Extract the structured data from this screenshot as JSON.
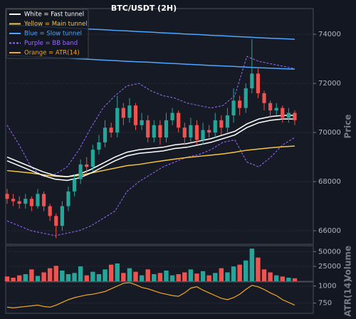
{
  "chart_data": [
    {
      "type": "candlestick",
      "title": "BTC/USDT (2H)",
      "ylabel": "Price",
      "ylim": [
        65450,
        75050
      ],
      "yticks": [
        66000,
        68000,
        70000,
        72000,
        74000
      ],
      "grid": true,
      "up_color": "#26a69a",
      "down_color": "#ef5350",
      "open": [
        67500,
        67300,
        67200,
        67100,
        67300,
        67000,
        67500,
        67000,
        66600,
        66200,
        67000,
        67600,
        68100,
        68700,
        68600,
        69300,
        69600,
        70200,
        70000,
        71000,
        70600,
        71100,
        70300,
        70500,
        69800,
        70300,
        69800,
        70500,
        70800,
        70200,
        69800,
        70300,
        69700,
        70100,
        70000,
        70500,
        70200,
        70700,
        71300,
        71000,
        71800,
        72400,
        71600,
        71200,
        70900,
        71000,
        70600,
        70800
      ],
      "high": [
        67700,
        67500,
        67400,
        67500,
        67400,
        67700,
        67600,
        67100,
        66700,
        67200,
        67800,
        68300,
        68900,
        69000,
        69500,
        69900,
        70500,
        70400,
        71500,
        71200,
        71400,
        71200,
        70800,
        70700,
        70500,
        70500,
        70800,
        71000,
        70900,
        70400,
        70600,
        70500,
        70400,
        70300,
        70800,
        70700,
        71000,
        71800,
        71500,
        72000,
        73800,
        72600,
        71700,
        71300,
        71200,
        71100,
        71000,
        70900
      ],
      "low": [
        67100,
        67000,
        66900,
        66900,
        66800,
        66900,
        66800,
        66400,
        65700,
        66000,
        66800,
        67400,
        67900,
        68300,
        68400,
        69100,
        69400,
        69800,
        69800,
        70300,
        70400,
        70100,
        70100,
        69600,
        69600,
        69500,
        69600,
        70300,
        70000,
        69500,
        69600,
        69500,
        69500,
        69800,
        69800,
        69900,
        70000,
        70400,
        70700,
        70800,
        71600,
        71400,
        70900,
        70600,
        70700,
        70400,
        70400,
        70300
      ],
      "close": [
        67300,
        67200,
        67100,
        67300,
        67000,
        67500,
        67000,
        66600,
        66200,
        67000,
        67600,
        68100,
        68700,
        68600,
        69300,
        69600,
        70200,
        70000,
        71000,
        70600,
        71100,
        70300,
        70500,
        69800,
        70300,
        69800,
        70500,
        70800,
        70200,
        69800,
        70300,
        69700,
        70100,
        70000,
        70500,
        70200,
        70700,
        71300,
        71000,
        71800,
        72400,
        71600,
        71200,
        70900,
        71000,
        70600,
        70800,
        70500
      ],
      "overlays": [
        {
          "color": "#4da6ff",
          "width": 1.5,
          "values": [
            74380,
            74360,
            74340,
            74310,
            74290,
            74260,
            74240,
            74210,
            74190,
            74160,
            74140,
            74110,
            74090,
            74060,
            74040,
            74010,
            73990,
            73960,
            73940,
            73910,
            73890,
            73860,
            73840,
            73820,
            73800
          ]
        },
        {
          "color": "#4da6ff",
          "width": 1.5,
          "values": [
            73150,
            73130,
            73100,
            73080,
            73050,
            73030,
            73000,
            72980,
            72950,
            72930,
            72900,
            72880,
            72860,
            72830,
            72810,
            72780,
            72760,
            72730,
            72710,
            72690,
            72660,
            72640,
            72620,
            72600,
            72580
          ]
        },
        {
          "color": "#9b6bff",
          "width": 1,
          "dash": true,
          "values": [
            70300,
            69500,
            68600,
            68200,
            68300,
            68600,
            69300,
            70200,
            71000,
            71500,
            71900,
            72000,
            71700,
            71500,
            71400,
            71200,
            71100,
            71000,
            71100,
            71500,
            73100,
            72900,
            72800,
            72700,
            72600
          ]
        },
        {
          "color": "#9b6bff",
          "width": 1,
          "dash": true,
          "values": [
            66400,
            66200,
            66000,
            65900,
            65800,
            65900,
            66000,
            66200,
            66500,
            66800,
            67600,
            68000,
            68300,
            68600,
            68800,
            69000,
            69100,
            69300,
            69600,
            69700,
            68800,
            68600,
            69000,
            69500,
            69800
          ]
        },
        {
          "color": "#f5c542",
          "width": 1.5,
          "values": [
            68450,
            68400,
            68350,
            68280,
            68220,
            68200,
            68250,
            68350,
            68450,
            68550,
            68650,
            68700,
            68780,
            68850,
            68920,
            68980,
            69030,
            69080,
            69130,
            69200,
            69280,
            69330,
            69380,
            69420,
            69450
          ]
        },
        {
          "color": "#ffffff",
          "width": 1.5,
          "values": [
            69000,
            68800,
            68600,
            68400,
            68250,
            68200,
            68300,
            68500,
            68750,
            69000,
            69200,
            69300,
            69350,
            69400,
            69500,
            69550,
            69650,
            69750,
            69900,
            70050,
            70350,
            70550,
            70650,
            70700,
            70700
          ]
        },
        {
          "color": "#ffffff",
          "width": 1.5,
          "values": [
            68850,
            68650,
            68450,
            68250,
            68100,
            68050,
            68150,
            68350,
            68600,
            68850,
            69050,
            69150,
            69200,
            69250,
            69350,
            69400,
            69500,
            69600,
            69750,
            69900,
            70200,
            70400,
            70500,
            70550,
            70550
          ]
        }
      ],
      "legend": [
        {
          "label": "White = Fast tunnel",
          "color": "#ffffff"
        },
        {
          "label": "Yellow = Main tunnel",
          "color": "#f5c542"
        },
        {
          "label": "Blue = Slow tunnel",
          "color": "#4da6ff"
        },
        {
          "label": "Purple = BB band",
          "color": "#9b6bff",
          "dash": true
        },
        {
          "label": "Orange = ATR(14)",
          "color": "#f5a623"
        }
      ]
    },
    {
      "type": "bar",
      "ylabel": "Volume",
      "ylim": [
        0,
        60000
      ],
      "yticks": [
        25000,
        50000
      ],
      "grid": true,
      "values": [
        8000,
        6000,
        10000,
        12000,
        20000,
        9000,
        15000,
        22000,
        26000,
        18000,
        12000,
        14000,
        25000,
        10000,
        16000,
        12000,
        20000,
        28000,
        30000,
        14000,
        22000,
        16000,
        10000,
        20000,
        12000,
        14000,
        18000,
        10000,
        12000,
        15000,
        20000,
        13000,
        17000,
        10000,
        14000,
        22000,
        15000,
        25000,
        28000,
        35000,
        55000,
        40000,
        20000,
        15000,
        10000,
        8000,
        6000,
        5000
      ]
    },
    {
      "type": "line",
      "ylabel": "ATR(14)",
      "ylim": [
        600,
        1060
      ],
      "yticks": [
        750,
        1000
      ],
      "grid": true,
      "color": "#f5a623",
      "values": [
        690,
        680,
        690,
        700,
        710,
        720,
        700,
        690,
        720,
        760,
        800,
        830,
        850,
        870,
        880,
        900,
        920,
        960,
        1000,
        1040,
        1050,
        1020,
        980,
        960,
        930,
        900,
        880,
        860,
        850,
        900,
        970,
        990,
        940,
        900,
        860,
        820,
        800,
        830,
        880,
        950,
        1010,
        990,
        950,
        900,
        860,
        800,
        760,
        720
      ]
    }
  ]
}
